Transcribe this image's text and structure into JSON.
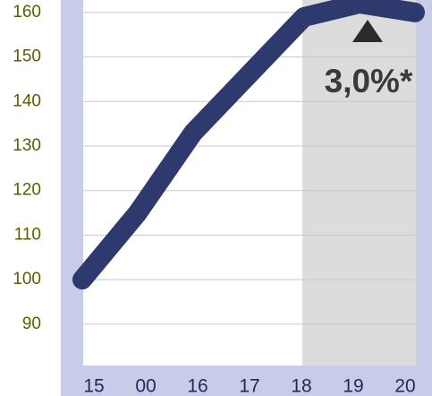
{
  "chart_data": {
    "type": "line",
    "categories": [
      "15",
      "00",
      "16",
      "17",
      "18",
      "19",
      "20"
    ],
    "series": [
      {
        "color": "#2e3a6e",
        "values": [
          100,
          115,
          133,
          146,
          159,
          162,
          160
        ]
      }
    ],
    "ylim": [
      80.7,
      162.8
    ],
    "yticks": [
      90,
      100,
      110,
      120,
      130,
      140,
      150,
      160
    ],
    "grid": true,
    "annotation": "3,0%*"
  }
}
